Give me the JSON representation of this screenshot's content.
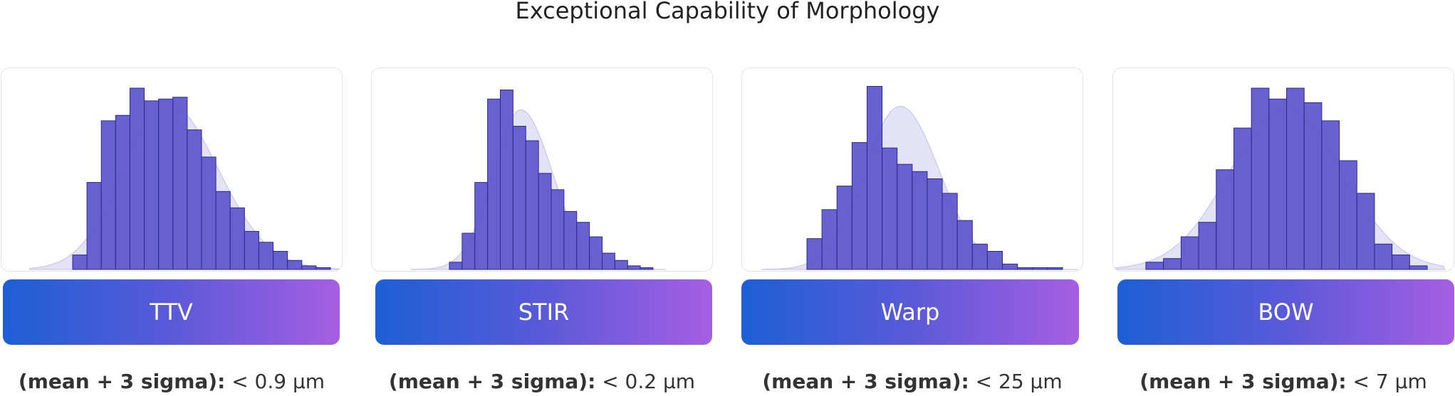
{
  "title": "Exceptional Capability of Morphology",
  "colors": {
    "bar_fill": "#5b55cc",
    "bar_stroke": "#2e2a8c",
    "curve_fill": "#e4e3f5",
    "curve_stroke": "#c9c7ea",
    "gradient": [
      "#1d5fd6",
      "#5a5ad8",
      "#a65ee3"
    ]
  },
  "metric_prefix": "(mean + 3 sigma):",
  "chart_data": [
    {
      "type": "bar",
      "title": "TTV",
      "metric_value": "< 0.9 µm",
      "values": [
        8,
        48,
        82,
        85,
        100,
        93,
        94,
        95,
        77,
        62,
        43,
        34,
        21,
        15,
        10,
        5,
        2,
        1
      ],
      "curve_peak_bin": 6.5,
      "curve_sigma_left": 3.0,
      "curve_sigma_right": 3.6,
      "curve_peak": 93,
      "ylim": [
        0,
        100
      ]
    },
    {
      "type": "bar",
      "title": "STIR",
      "metric_value": "< 0.2 µm",
      "values": [
        4,
        20,
        48,
        94,
        99,
        79,
        71,
        53,
        44,
        32,
        26,
        18,
        9,
        5,
        2,
        1
      ],
      "curve_peak_bin": 5.6,
      "curve_sigma_left": 2.2,
      "curve_sigma_right": 2.5,
      "curve_peak": 88,
      "ylim": [
        0,
        100
      ]
    },
    {
      "type": "bar",
      "title": "Warp",
      "metric_value": "< 25 µm",
      "values": [
        17,
        33,
        46,
        70,
        101,
        67,
        58,
        54,
        50,
        42,
        27,
        14,
        10,
        3,
        1,
        1,
        1
      ],
      "curve_peak_bin": 6.2,
      "curve_sigma_left": 2.4,
      "curve_sigma_right": 2.6,
      "curve_peak": 90,
      "ylim": [
        0,
        100
      ]
    },
    {
      "type": "bar",
      "title": "BOW",
      "metric_value": "< 7 µm",
      "values": [
        4,
        6,
        18,
        26,
        55,
        78,
        100,
        94,
        100,
        92,
        82,
        60,
        42,
        14,
        8,
        2
      ],
      "curve_peak_bin": 8.0,
      "curve_sigma_left": 3.2,
      "curve_sigma_right": 3.2,
      "curve_peak": 90,
      "ylim": [
        0,
        100
      ]
    }
  ]
}
